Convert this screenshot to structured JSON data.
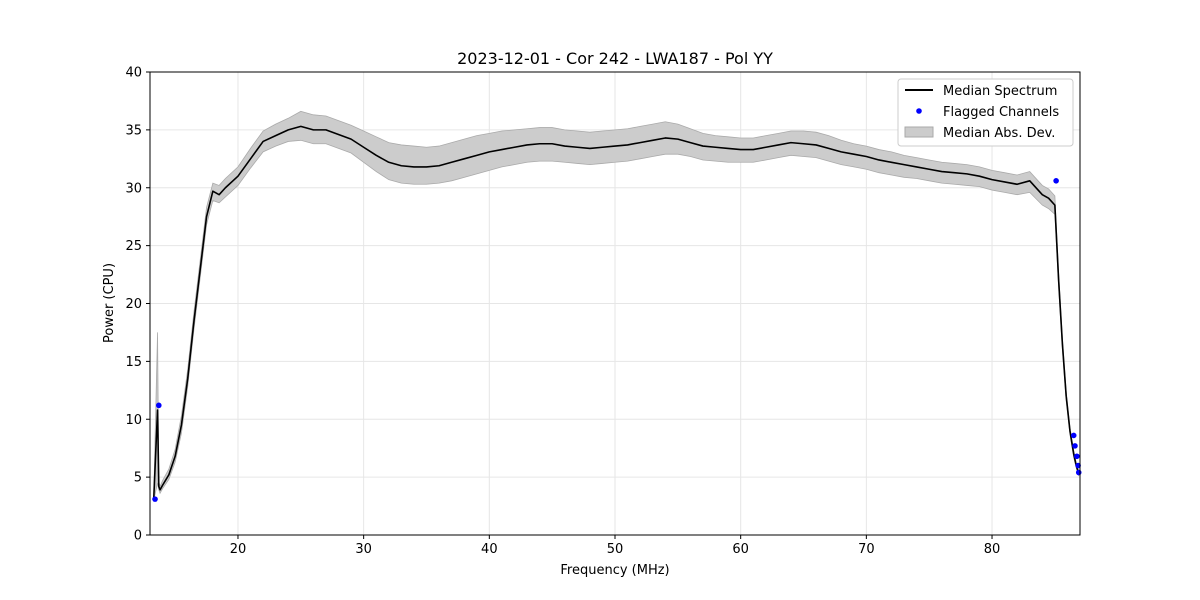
{
  "chart_data": {
    "type": "line",
    "title": "2023-12-01 - Cor 242 - LWA187 - Pol YY",
    "xlabel": "Frequency (MHz)",
    "ylabel": "Power (CPU)",
    "xlim": [
      13.0,
      87.0
    ],
    "ylim": [
      0,
      40
    ],
    "x_ticks": [
      20,
      30,
      40,
      50,
      60,
      70,
      80
    ],
    "y_ticks": [
      0,
      5,
      10,
      15,
      20,
      25,
      30,
      35,
      40
    ],
    "grid": true,
    "legend": {
      "placement": "top-right",
      "entries": [
        "Median Spectrum",
        "Flagged Channels",
        "Median Abs. Dev."
      ]
    },
    "colors": {
      "median": "#000000",
      "flagged": "#0000ff",
      "mad_fill": "#cccccc",
      "mad_edge": "#aaaaaa",
      "grid": "#e6e6e6"
    },
    "series": [
      {
        "name": "Median Spectrum",
        "x": [
          13.3,
          13.6,
          13.7,
          13.8,
          14.0,
          14.5,
          15.0,
          15.5,
          16.0,
          16.5,
          17.0,
          17.5,
          18.0,
          18.5,
          19.0,
          20.0,
          21.0,
          22.0,
          23.0,
          24.0,
          25.0,
          26.0,
          27.0,
          28.0,
          29.0,
          30.0,
          31.0,
          32.0,
          33.0,
          34.0,
          35.0,
          36.0,
          37.0,
          38.0,
          39.0,
          40.0,
          41.0,
          42.0,
          43.0,
          44.0,
          45.0,
          46.0,
          47.0,
          48.0,
          49.0,
          50.0,
          51.0,
          52.0,
          53.0,
          54.0,
          55.0,
          56.0,
          57.0,
          58.0,
          59.0,
          60.0,
          61.0,
          62.0,
          63.0,
          64.0,
          65.0,
          66.0,
          67.0,
          68.0,
          69.0,
          70.0,
          71.0,
          72.0,
          73.0,
          74.0,
          75.0,
          76.0,
          77.0,
          78.0,
          79.0,
          80.0,
          81.0,
          82.0,
          83.0,
          84.0,
          84.5,
          85.0,
          85.3,
          85.6,
          85.9,
          86.2,
          86.5,
          86.7,
          86.9
        ],
        "y": [
          3.2,
          10.8,
          4.2,
          3.9,
          4.3,
          5.2,
          6.8,
          9.5,
          13.5,
          18.5,
          23.0,
          27.5,
          29.7,
          29.4,
          30.0,
          31.0,
          32.5,
          34.0,
          34.5,
          35.0,
          35.3,
          35.0,
          35.0,
          34.6,
          34.2,
          33.5,
          32.8,
          32.2,
          31.9,
          31.8,
          31.8,
          31.9,
          32.2,
          32.5,
          32.8,
          33.1,
          33.3,
          33.5,
          33.7,
          33.8,
          33.8,
          33.6,
          33.5,
          33.4,
          33.5,
          33.6,
          33.7,
          33.9,
          34.1,
          34.3,
          34.2,
          33.9,
          33.6,
          33.5,
          33.4,
          33.3,
          33.3,
          33.5,
          33.7,
          33.9,
          33.8,
          33.7,
          33.4,
          33.1,
          32.9,
          32.7,
          32.4,
          32.2,
          32.0,
          31.8,
          31.6,
          31.4,
          31.3,
          31.2,
          31.0,
          30.7,
          30.5,
          30.3,
          30.6,
          29.4,
          29.1,
          28.5,
          22.0,
          16.5,
          12.0,
          9.0,
          7.0,
          6.0,
          5.3
        ]
      },
      {
        "name": "Median Abs. Dev.",
        "x": [
          13.3,
          13.6,
          13.7,
          13.8,
          14.0,
          14.5,
          15.0,
          15.5,
          16.0,
          16.5,
          17.0,
          17.5,
          18.0,
          18.5,
          19.0,
          20.0,
          21.0,
          22.0,
          23.0,
          24.0,
          25.0,
          26.0,
          27.0,
          28.0,
          29.0,
          30.0,
          31.0,
          32.0,
          33.0,
          34.0,
          35.0,
          36.0,
          37.0,
          38.0,
          39.0,
          40.0,
          41.0,
          42.0,
          43.0,
          44.0,
          45.0,
          46.0,
          47.0,
          48.0,
          49.0,
          50.0,
          51.0,
          52.0,
          53.0,
          54.0,
          55.0,
          56.0,
          57.0,
          58.0,
          59.0,
          60.0,
          61.0,
          62.0,
          63.0,
          64.0,
          65.0,
          66.0,
          67.0,
          68.0,
          69.0,
          70.0,
          71.0,
          72.0,
          73.0,
          74.0,
          75.0,
          76.0,
          77.0,
          78.0,
          79.0,
          80.0,
          81.0,
          82.0,
          83.0,
          84.0,
          84.5,
          85.0,
          85.3,
          85.6,
          85.9,
          86.2,
          86.5,
          86.7,
          86.9
        ],
        "upper": [
          3.5,
          17.5,
          4.6,
          4.2,
          4.7,
          5.7,
          7.4,
          10.3,
          14.3,
          19.3,
          23.8,
          28.3,
          30.4,
          30.2,
          30.8,
          31.8,
          33.4,
          34.9,
          35.5,
          36.0,
          36.6,
          36.3,
          36.2,
          35.8,
          35.4,
          34.9,
          34.4,
          33.9,
          33.7,
          33.6,
          33.5,
          33.6,
          33.9,
          34.2,
          34.5,
          34.7,
          34.9,
          35.0,
          35.1,
          35.2,
          35.2,
          35.0,
          34.9,
          34.8,
          34.9,
          35.0,
          35.1,
          35.3,
          35.5,
          35.7,
          35.5,
          35.1,
          34.7,
          34.5,
          34.4,
          34.3,
          34.3,
          34.5,
          34.7,
          34.9,
          34.9,
          34.8,
          34.5,
          34.1,
          33.8,
          33.6,
          33.3,
          33.1,
          32.8,
          32.6,
          32.4,
          32.2,
          32.1,
          32.0,
          31.8,
          31.5,
          31.3,
          31.1,
          31.4,
          30.2,
          29.9,
          29.3,
          22.6,
          17.0,
          12.4,
          9.3,
          7.3,
          6.2,
          5.5
        ],
        "lower": [
          3.0,
          4.5,
          3.9,
          3.6,
          4.0,
          4.8,
          6.3,
          8.8,
          12.8,
          17.8,
          22.3,
          26.8,
          28.9,
          28.7,
          29.2,
          30.2,
          31.7,
          33.1,
          33.6,
          34.0,
          34.1,
          33.8,
          33.8,
          33.4,
          33.0,
          32.2,
          31.4,
          30.7,
          30.4,
          30.3,
          30.3,
          30.4,
          30.6,
          30.9,
          31.2,
          31.5,
          31.8,
          32.0,
          32.2,
          32.3,
          32.3,
          32.2,
          32.1,
          32.0,
          32.1,
          32.2,
          32.3,
          32.5,
          32.7,
          32.9,
          32.9,
          32.7,
          32.4,
          32.3,
          32.2,
          32.2,
          32.2,
          32.4,
          32.6,
          32.8,
          32.7,
          32.6,
          32.3,
          32.0,
          31.8,
          31.6,
          31.3,
          31.1,
          30.9,
          30.8,
          30.6,
          30.4,
          30.3,
          30.2,
          30.1,
          29.8,
          29.6,
          29.4,
          29.6,
          28.5,
          28.2,
          27.7,
          21.4,
          16.0,
          11.6,
          8.7,
          6.7,
          5.8,
          5.1
        ]
      },
      {
        "name": "Flagged Channels",
        "points": [
          {
            "x": 13.4,
            "y": 3.1
          },
          {
            "x": 13.7,
            "y": 11.2
          },
          {
            "x": 85.1,
            "y": 30.6
          },
          {
            "x": 86.5,
            "y": 8.6
          },
          {
            "x": 86.6,
            "y": 7.7
          },
          {
            "x": 86.75,
            "y": 6.8
          },
          {
            "x": 86.85,
            "y": 6.0
          },
          {
            "x": 86.9,
            "y": 5.4
          }
        ]
      }
    ]
  }
}
